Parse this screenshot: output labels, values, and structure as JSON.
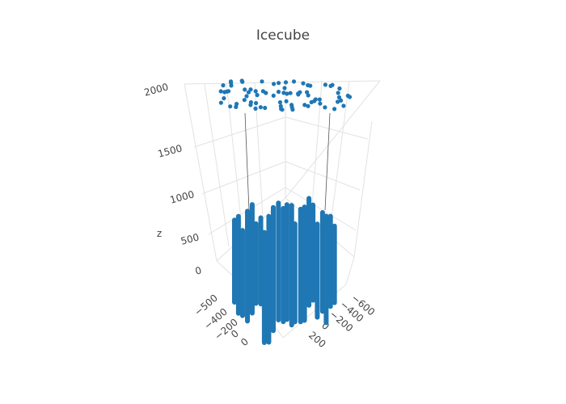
{
  "chart_data": {
    "type": "scatter3d",
    "title": "Icecube",
    "xlabel": "",
    "ylabel": "",
    "zlabel": "z",
    "x_ticks": [
      "−500",
      "−400",
      "−200",
      "0",
      "0"
    ],
    "y_ticks": [
      "−600",
      "−400",
      "−200",
      "0",
      "200"
    ],
    "z_ticks": [
      "2000",
      "1500",
      "1000",
      "500",
      "0"
    ],
    "z_range": [
      0,
      2000
    ],
    "marker_color": "#1f77b4",
    "grid": true,
    "series": [
      {
        "description_points": "string array points at z≈100–550 and surface points at z≈1950–2000",
        "strings_z_range": [
          100,
          550
        ],
        "surface_z": 1975
      }
    ]
  }
}
